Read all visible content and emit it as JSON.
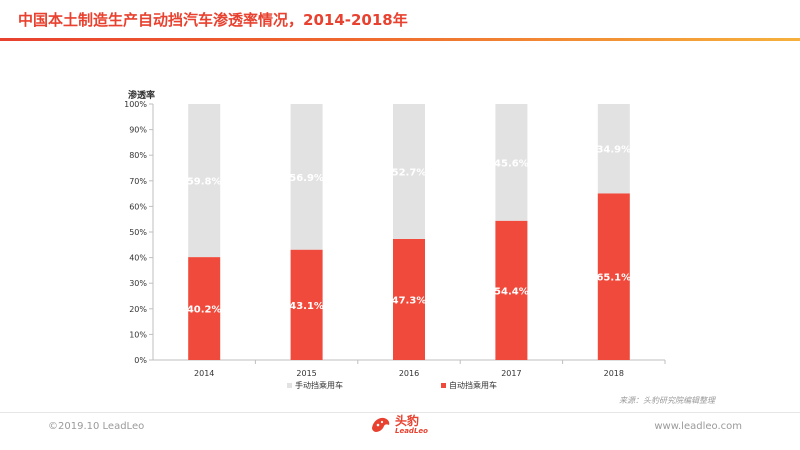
{
  "header": {
    "title": "中国本土制造生产自动挡汽车渗透率情况，2014-2018年"
  },
  "footer": {
    "source": "来源：头豹研究院编辑整理",
    "copyright": "©2019.10 LeadLeo",
    "website": "www.leadleo.com",
    "logo_cn": "头豹",
    "logo_en": "LeadLeo"
  },
  "colors": {
    "auto": "#f04a3c",
    "manual": "#e2e2e2",
    "accent": "#e8412f"
  },
  "chart_data": {
    "type": "bar",
    "stacked": true,
    "percent_stacked": true,
    "ylabel": "渗透率",
    "ylim": [
      0,
      100
    ],
    "yticks": [
      "0%",
      "10%",
      "20%",
      "30%",
      "40%",
      "50%",
      "60%",
      "70%",
      "80%",
      "90%",
      "100%"
    ],
    "categories": [
      "2014",
      "2015",
      "2016",
      "2017",
      "2018"
    ],
    "series": [
      {
        "name": "自动挡乘用车",
        "values": [
          40.2,
          43.1,
          47.3,
          54.4,
          65.1
        ],
        "labels": [
          "40.2%",
          "43.1%",
          "47.3%",
          "54.4%",
          "65.1%"
        ]
      },
      {
        "name": "手动挡乘用车",
        "values": [
          59.8,
          56.9,
          52.7,
          45.6,
          34.9
        ],
        "labels": [
          "59.8%",
          "56.9%",
          "52.7%",
          "45.6%",
          "34.9%"
        ]
      }
    ],
    "legend": "bottom",
    "grid": false
  }
}
